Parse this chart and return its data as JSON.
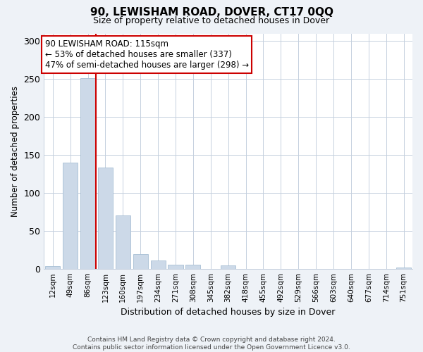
{
  "title": "90, LEWISHAM ROAD, DOVER, CT17 0QQ",
  "subtitle": "Size of property relative to detached houses in Dover",
  "xlabel": "Distribution of detached houses by size in Dover",
  "ylabel": "Number of detached properties",
  "bar_color": "#ccd9e8",
  "bar_edge_color": "#a8bfd4",
  "annotation_box_edge": "#cc0000",
  "vline_color": "#cc0000",
  "vline_x": 2.45,
  "bin_labels": [
    "12sqm",
    "49sqm",
    "86sqm",
    "123sqm",
    "160sqm",
    "197sqm",
    "234sqm",
    "271sqm",
    "308sqm",
    "345sqm",
    "382sqm",
    "418sqm",
    "455sqm",
    "492sqm",
    "529sqm",
    "566sqm",
    "603sqm",
    "640sqm",
    "677sqm",
    "714sqm",
    "751sqm"
  ],
  "bar_heights": [
    3,
    140,
    251,
    133,
    70,
    19,
    11,
    5,
    5,
    0,
    4,
    0,
    0,
    0,
    0,
    0,
    0,
    0,
    0,
    0,
    2
  ],
  "ylim": [
    0,
    310
  ],
  "yticks": [
    0,
    50,
    100,
    150,
    200,
    250,
    300
  ],
  "annotation_line1": "90 LEWISHAM ROAD: 115sqm",
  "annotation_line2": "← 53% of detached houses are smaller (337)",
  "annotation_line3": "47% of semi-detached houses are larger (298) →",
  "footnote": "Contains HM Land Registry data © Crown copyright and database right 2024.\nContains public sector information licensed under the Open Government Licence v3.0.",
  "background_color": "#eef2f7",
  "plot_background": "#ffffff",
  "grid_color": "#c5d0de"
}
